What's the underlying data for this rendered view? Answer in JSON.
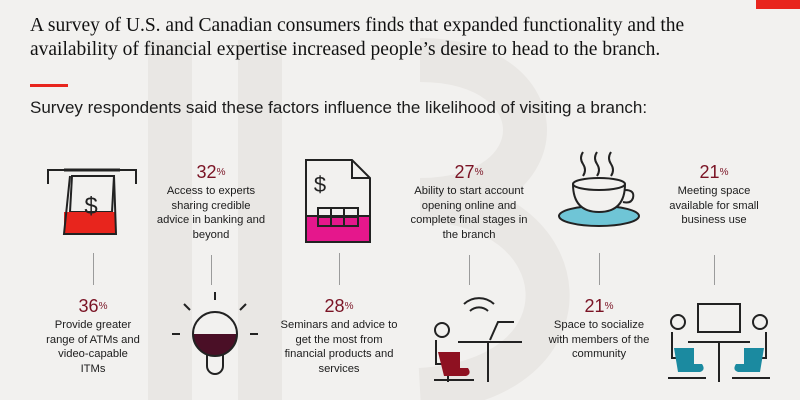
{
  "header": {
    "title": "A survey of U.S. and Canadian consumers finds that expanded functionality and the availability of financial expertise increased people’s desire to head to the branch.",
    "subtitle": "Survey respondents said these factors influence the likelihood of visiting a branch:"
  },
  "colors": {
    "accent": "#e8251d",
    "maroon": "#7a1324",
    "magenta": "#e5178c",
    "teal": "#1b8aa0",
    "tealLight": "#6fc5d6"
  },
  "factors": [
    {
      "pct": "36",
      "unit": "%",
      "label": "Provide greater range of ATMs and video-capable ITMs",
      "icon": "atm-receipt-icon"
    },
    {
      "pct": "32",
      "unit": "%",
      "label": "Access to experts sharing credible advice in banking and beyond",
      "icon": "lightbulb-icon"
    },
    {
      "pct": "28",
      "unit": "%",
      "label": "Seminars and advice to get the most from financial products and services",
      "icon": "document-icon"
    },
    {
      "pct": "27",
      "unit": "%",
      "label": "Ability to start account opening online and complete final stages in the branch",
      "icon": "person-laptop-icon"
    },
    {
      "pct": "21",
      "unit": "%",
      "label": "Space to socialize with members of the community",
      "icon": "coffee-cup-icon"
    },
    {
      "pct": "21",
      "unit": "%",
      "label": "Meeting space available for small business use",
      "icon": "meeting-icon"
    }
  ],
  "icons": {
    "dollar_sign": "$"
  }
}
